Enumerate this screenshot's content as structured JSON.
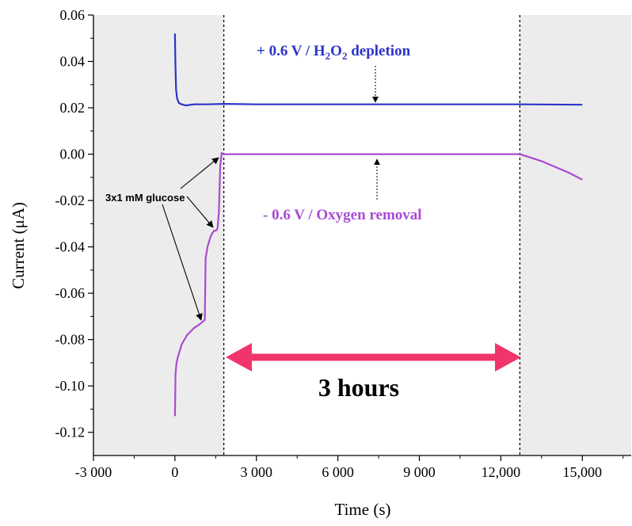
{
  "chart_data": {
    "type": "line",
    "xlabel": "Time (s)",
    "ylabel": "Current (μA)",
    "xlim": [
      -3000,
      16800
    ],
    "ylim": [
      -0.13,
      0.06
    ],
    "x_ticks": [
      -3000,
      0,
      3000,
      6000,
      9000,
      12000,
      15000
    ],
    "x_tick_labels": [
      "-3 000",
      "0",
      "3 000",
      "6 000",
      "9 000",
      "12,000",
      "15,000"
    ],
    "y_ticks": [
      0.06,
      0.04,
      0.02,
      0.0,
      -0.02,
      -0.04,
      -0.06,
      -0.08,
      -0.1,
      -0.12
    ],
    "y_tick_labels": [
      "0.06",
      "0.04",
      "0.02",
      "0.00",
      "-0.02",
      "-0.04",
      "-0.06",
      "-0.08",
      "-0.10",
      "-0.12"
    ],
    "grid": false,
    "shaded_regions": [
      {
        "x": [
          -3000,
          1800
        ],
        "color": "#ececec"
      },
      {
        "x": [
          12700,
          16800
        ],
        "color": "#ececec"
      }
    ],
    "vertical_lines": [
      1800,
      12700
    ],
    "series": [
      {
        "color": "#2b35c8",
        "x": [
          0,
          15,
          40,
          80,
          150,
          250,
          400,
          700,
          1200,
          1800,
          3000,
          6000,
          9000,
          12000,
          12700,
          15000
        ],
        "y": [
          0.052,
          0.04,
          0.028,
          0.024,
          0.022,
          0.0215,
          0.021,
          0.0215,
          0.0215,
          0.0217,
          0.0215,
          0.0215,
          0.0215,
          0.0215,
          0.0215,
          0.0213
        ]
      },
      {
        "color": "#a94bd0",
        "x": [
          0,
          20,
          60,
          120,
          250,
          450,
          700,
          900,
          1050,
          1100,
          1130,
          1200,
          1300,
          1380,
          1450,
          1520,
          1570,
          1620,
          1670,
          1720,
          1800,
          2500,
          6000,
          9000,
          12000,
          12700,
          13500,
          14500,
          15000
        ],
        "y": [
          -0.113,
          -0.095,
          -0.09,
          -0.087,
          -0.082,
          -0.078,
          -0.075,
          -0.0735,
          -0.072,
          -0.0715,
          -0.045,
          -0.04,
          -0.036,
          -0.034,
          -0.033,
          -0.033,
          -0.032,
          -0.025,
          -0.005,
          0.0005,
          0.0,
          0.0,
          0.0,
          0.0,
          0.0,
          0.0,
          -0.003,
          -0.008,
          -0.011
        ]
      }
    ],
    "annotations": {
      "blue": {
        "sign": "+ 0.6 V / H",
        "sub1": "2",
        "mid": "O",
        "sub2": "2",
        "tail": " depletion",
        "color": "#2b35c8"
      },
      "purple": {
        "text": "- 0.6 V / Oxygen removal",
        "color": "#a94bd0"
      },
      "glucose": {
        "text": "3x1 mM glucose"
      },
      "hours": {
        "text": "3 hours",
        "arrow_color": "#f0356b"
      }
    }
  }
}
